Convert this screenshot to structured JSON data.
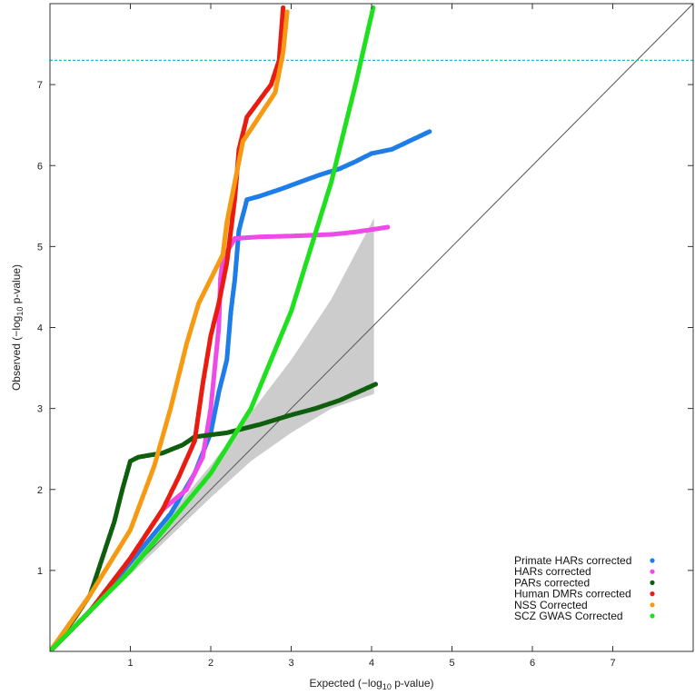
{
  "chart_data": {
    "type": "scatter",
    "title": "",
    "xlabel": {
      "prefix": "Expected (−log",
      "sub": "10",
      "suffix": " p-value)"
    },
    "ylabel": {
      "prefix": "Observed (−log",
      "sub": "10",
      "suffix": " p-value)"
    },
    "xlim": [
      0,
      8
    ],
    "ylim": [
      0,
      8
    ],
    "x_ticks": [
      "1",
      "2",
      "3",
      "4",
      "5",
      "6",
      "7"
    ],
    "y_ticks": [
      "1",
      "2",
      "3",
      "4",
      "5",
      "6",
      "7"
    ],
    "grid": false,
    "significance_threshold": {
      "y": 7.3,
      "color": "#22b8d8",
      "style": "dashed"
    },
    "reference_line": {
      "from": [
        0,
        0
      ],
      "to": [
        8,
        8
      ],
      "color": "#555555"
    },
    "confidence_band": {
      "color": "#cccccc",
      "upper": [
        [
          0,
          0
        ],
        [
          1,
          1.1
        ],
        [
          2,
          2.3
        ],
        [
          2.5,
          2.95
        ],
        [
          3,
          3.6
        ],
        [
          3.5,
          4.35
        ],
        [
          4.03,
          5.35
        ]
      ],
      "lower": [
        [
          0,
          0
        ],
        [
          1,
          0.95
        ],
        [
          2,
          1.9
        ],
        [
          2.5,
          2.35
        ],
        [
          3,
          2.7
        ],
        [
          3.5,
          3.0
        ],
        [
          4.03,
          3.18
        ]
      ]
    },
    "legend": {
      "position": "bottom-right"
    },
    "series": [
      {
        "name": "Primate HARs corrected",
        "color": "#1e7de8",
        "points": [
          [
            0,
            0
          ],
          [
            0.5,
            0.5
          ],
          [
            1,
            1.1
          ],
          [
            1.5,
            1.7
          ],
          [
            1.8,
            2.2
          ],
          [
            2.0,
            2.7
          ],
          [
            2.1,
            3.2
          ],
          [
            2.2,
            3.6
          ],
          [
            2.25,
            4.2
          ],
          [
            2.3,
            4.6
          ],
          [
            2.35,
            5.2
          ],
          [
            2.45,
            5.58
          ],
          [
            2.6,
            5.62
          ],
          [
            2.9,
            5.72
          ],
          [
            3.2,
            5.83
          ],
          [
            3.4,
            5.9
          ],
          [
            3.6,
            5.96
          ],
          [
            3.8,
            6.05
          ],
          [
            4.0,
            6.15
          ],
          [
            4.25,
            6.2
          ],
          [
            4.72,
            6.42
          ]
        ]
      },
      {
        "name": "HARs corrected",
        "color": "#ee4ae8",
        "points": [
          [
            0,
            0
          ],
          [
            0.5,
            0.5
          ],
          [
            1,
            1.15
          ],
          [
            1.4,
            1.75
          ],
          [
            1.7,
            2.0
          ],
          [
            1.9,
            2.4
          ],
          [
            2.0,
            3.0
          ],
          [
            2.05,
            3.5
          ],
          [
            2.1,
            4.0
          ],
          [
            2.12,
            4.6
          ],
          [
            2.15,
            4.85
          ],
          [
            2.3,
            5.1
          ],
          [
            2.6,
            5.12
          ],
          [
            3.0,
            5.13
          ],
          [
            3.5,
            5.15
          ],
          [
            3.8,
            5.18
          ],
          [
            4.2,
            5.24
          ]
        ]
      },
      {
        "name": "PARs corrected",
        "color": "#0e5e0e",
        "points": [
          [
            0,
            0
          ],
          [
            0.3,
            0.4
          ],
          [
            0.5,
            0.7
          ],
          [
            0.7,
            1.3
          ],
          [
            0.8,
            1.6
          ],
          [
            0.9,
            2.0
          ],
          [
            1.0,
            2.35
          ],
          [
            1.1,
            2.4
          ],
          [
            1.4,
            2.45
          ],
          [
            1.65,
            2.55
          ],
          [
            1.8,
            2.65
          ],
          [
            2.2,
            2.7
          ],
          [
            2.6,
            2.8
          ],
          [
            3.0,
            2.92
          ],
          [
            3.3,
            3.0
          ],
          [
            3.6,
            3.1
          ],
          [
            4.05,
            3.3
          ]
        ]
      },
      {
        "name": "Human DMRs corrected",
        "color": "#e81c10",
        "points": [
          [
            0,
            0
          ],
          [
            0.5,
            0.5
          ],
          [
            1,
            1.15
          ],
          [
            1.4,
            1.75
          ],
          [
            1.6,
            2.15
          ],
          [
            1.8,
            2.6
          ],
          [
            1.9,
            3.3
          ],
          [
            2.0,
            3.9
          ],
          [
            2.1,
            4.3
          ],
          [
            2.2,
            4.8
          ],
          [
            2.3,
            5.6
          ],
          [
            2.35,
            6.2
          ],
          [
            2.45,
            6.6
          ],
          [
            2.6,
            6.8
          ],
          [
            2.75,
            7.0
          ],
          [
            2.85,
            7.3
          ],
          [
            2.9,
            7.95
          ]
        ]
      },
      {
        "name": "NSS Corrected",
        "color": "#f59a12",
        "points": [
          [
            0,
            0
          ],
          [
            0.5,
            0.7
          ],
          [
            1,
            1.5
          ],
          [
            1.3,
            2.3
          ],
          [
            1.5,
            3.0
          ],
          [
            1.7,
            3.8
          ],
          [
            1.85,
            4.3
          ],
          [
            2.0,
            4.6
          ],
          [
            2.15,
            4.9
          ],
          [
            2.2,
            5.3
          ],
          [
            2.3,
            5.8
          ],
          [
            2.4,
            6.3
          ],
          [
            2.6,
            6.6
          ],
          [
            2.8,
            6.9
          ],
          [
            2.9,
            7.4
          ],
          [
            2.95,
            7.9
          ]
        ]
      },
      {
        "name": "SCZ GWAS Corrected",
        "color": "#1ee01e",
        "points": [
          [
            0,
            0
          ],
          [
            1.0,
            1.0
          ],
          [
            1.5,
            1.6
          ],
          [
            2.0,
            2.2
          ],
          [
            2.5,
            3.0
          ],
          [
            3.0,
            4.2
          ],
          [
            3.5,
            5.8
          ],
          [
            3.8,
            7.0
          ],
          [
            4.02,
            7.95
          ]
        ]
      }
    ]
  }
}
